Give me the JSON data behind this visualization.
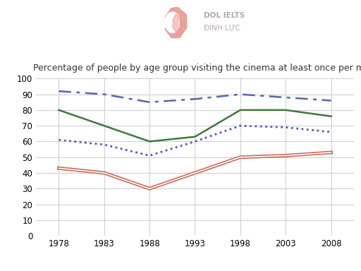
{
  "title": "Percentage of people by age group visiting the cinema at least once per month",
  "years": [
    1978,
    1983,
    1988,
    1993,
    1998,
    2003,
    2008
  ],
  "series": {
    "Age 14-24": {
      "values": [
        92,
        90,
        85,
        87,
        90,
        88,
        86
      ],
      "color": "#5566aa",
      "linestyle": "dashed",
      "linewidth": 1.8
    },
    "Age 25-34": {
      "values": [
        80,
        70,
        60,
        63,
        80,
        80,
        76
      ],
      "color": "#3a7a3a",
      "linestyle": "solid",
      "linewidth": 1.8
    },
    "Age 35-49": {
      "values": [
        61,
        58,
        51,
        60,
        70,
        69,
        66
      ],
      "color": "#5555bb",
      "linestyle": "dotted",
      "linewidth": 2.0
    },
    "Age 50+": {
      "values": [
        43,
        40,
        30,
        40,
        50,
        51,
        53
      ],
      "color": "#cc6655",
      "linestyle": "solid",
      "linewidth": 1.8
    }
  },
  "ylim": [
    0,
    100
  ],
  "yticks": [
    0,
    10,
    20,
    30,
    40,
    50,
    60,
    70,
    80,
    90,
    100
  ],
  "xticks": [
    1978,
    1983,
    1988,
    1993,
    1998,
    2003,
    2008
  ],
  "xlim": [
    1975.5,
    2010.5
  ],
  "background_color": "#ffffff",
  "grid_color": "#cccccc",
  "title_fontsize": 9.0,
  "tick_fontsize": 8.5,
  "legend_fontsize": 8.0,
  "legend_line_color_50plus": "#d4b483",
  "logo_text_line1": "DOL IELTS",
  "logo_text_line2": "ĐÌNH LỰC",
  "logo_text_color1": "#aaaaaa",
  "logo_text_color2": "#bbaaaa"
}
